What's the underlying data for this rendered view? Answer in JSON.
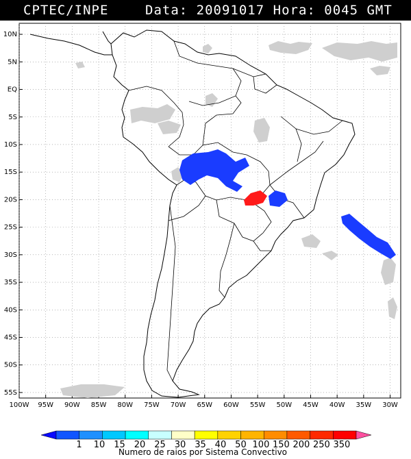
{
  "header": {
    "title": "CPTEC/INPE",
    "data_label": "Data:",
    "date": "20091017",
    "hora_label": "Hora:",
    "time": "0045 GMT"
  },
  "map": {
    "lat_ticks": [
      "10N",
      "5N",
      "EQ",
      "5S",
      "10S",
      "15S",
      "20S",
      "25S",
      "30S",
      "35S",
      "40S",
      "45S",
      "50S",
      "55S"
    ],
    "lon_ticks": [
      "100W",
      "95W",
      "90W",
      "85W",
      "80W",
      "75W",
      "70W",
      "65W",
      "60W",
      "55W",
      "50W",
      "45W",
      "40W",
      "35W",
      "30W"
    ],
    "lon_range": [
      -100,
      -28
    ],
    "lat_range": [
      -56,
      12
    ],
    "colors": {
      "land_border": "#000000",
      "grid": "#888888",
      "cloud": "#cfcfcf",
      "storm_blue": "#1a3cff",
      "storm_red": "#ff1a1a"
    }
  },
  "colorbar": {
    "labels": [
      "1",
      "10",
      "15",
      "20",
      "25",
      "30",
      "35",
      "40",
      "50",
      "100",
      "150",
      "200",
      "250",
      "350"
    ],
    "colors": [
      "#0a0aff",
      "#1255ff",
      "#1e90ff",
      "#00c8ff",
      "#00ffff",
      "#c8ffff",
      "#ffffc8",
      "#ffff00",
      "#ffd200",
      "#ffb400",
      "#ff8c00",
      "#ff5a00",
      "#ff2800",
      "#ff0000",
      "#ff50a0"
    ],
    "title": "Numero de raios por Sistema Convectivo"
  }
}
